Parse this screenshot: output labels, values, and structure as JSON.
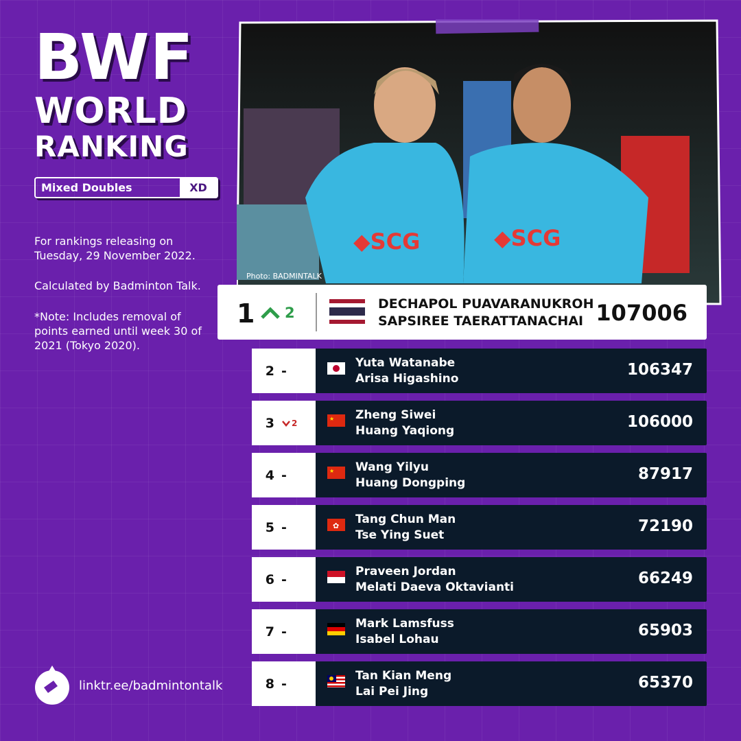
{
  "header": {
    "title_lines": [
      "BWF",
      "WORLD",
      "RANKING"
    ],
    "category": "Mixed Doubles",
    "category_code": "XD"
  },
  "notes": [
    "For rankings releasing on Tuesday, 29 November 2022.",
    "Calculated by Badminton Talk.",
    "*Note: Includes removal of points earned until week 30 of 2021 (Tokyo 2020)."
  ],
  "photo_credit": "Photo: BADMINTALK",
  "rankings": [
    {
      "rank": 1,
      "change": 2,
      "players": [
        "DECHAPOL PUAVARANUKROH",
        "SAPSIREE TAERATTANACHAI"
      ],
      "points": 107006
    },
    {
      "rank": 2,
      "change": "-",
      "players": [
        "Yuta Watanabe",
        "Arisa Higashino"
      ],
      "points": 106347
    },
    {
      "rank": 3,
      "change": 2,
      "players": [
        "Zheng Siwei",
        "Huang Yaqiong"
      ],
      "points": 106000
    },
    {
      "rank": 4,
      "change": "-",
      "players": [
        "Wang Yilyu",
        "Huang Dongping"
      ],
      "points": 87917
    },
    {
      "rank": 5,
      "change": "-",
      "players": [
        "Tang Chun Man",
        "Tse Ying Suet"
      ],
      "points": 72190
    },
    {
      "rank": 6,
      "change": "-",
      "players": [
        "Praveen Jordan",
        "Melati Daeva Oktavianti"
      ],
      "points": 66249
    },
    {
      "rank": 7,
      "change": "-",
      "players": [
        "Mark Lamsfuss",
        "Isabel Lohau"
      ],
      "points": 65903
    },
    {
      "rank": 8,
      "change": "-",
      "players": [
        "Tan Kian Meng",
        "Lai Pei Jing"
      ],
      "points": 65370
    }
  ],
  "footer": {
    "link": "linktr.ee/badmintontalk"
  }
}
